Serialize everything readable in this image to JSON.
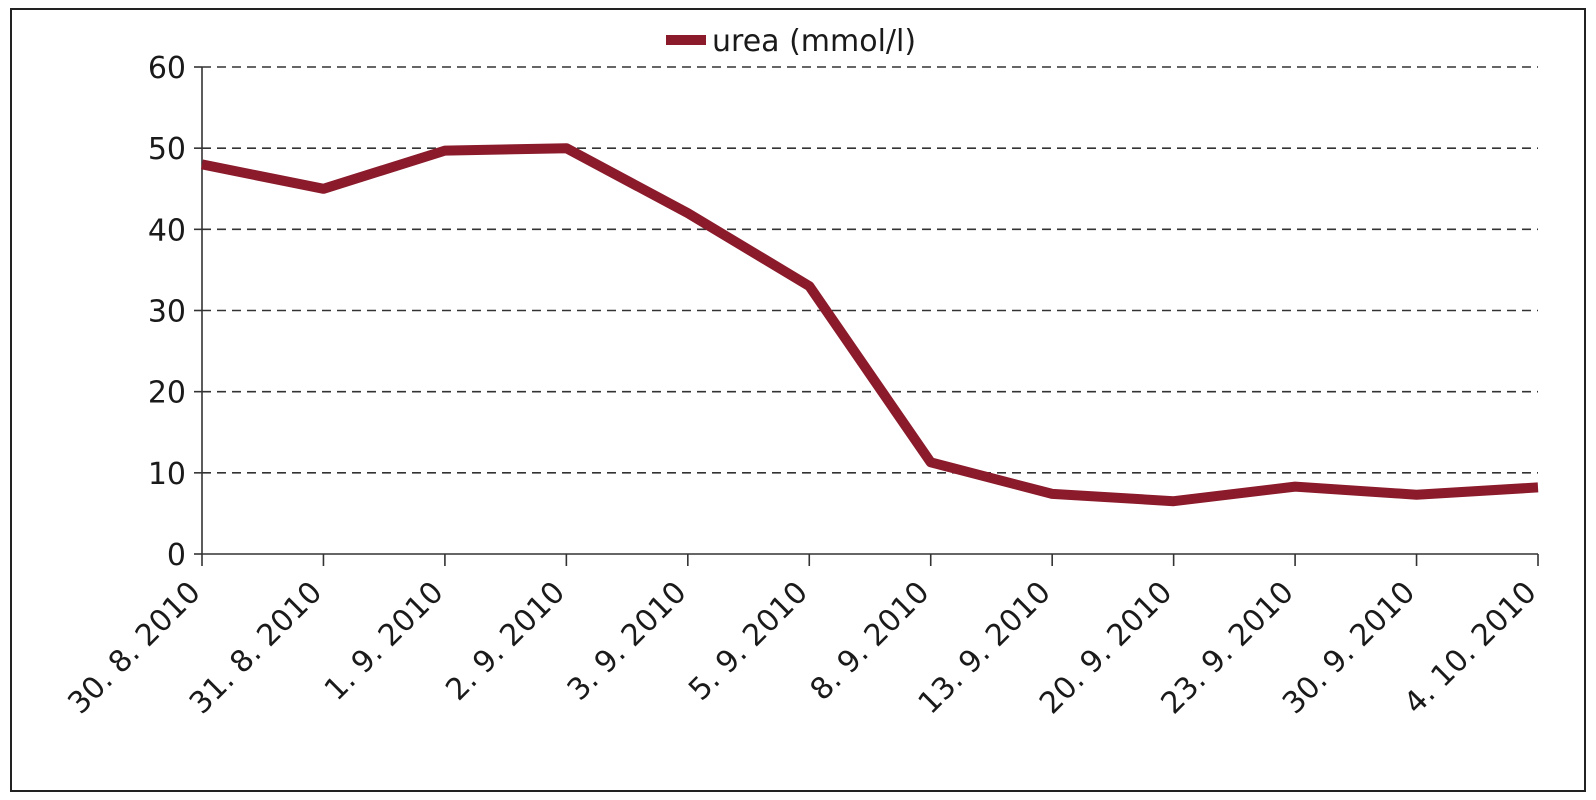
{
  "chart_data": {
    "type": "line",
    "title": "",
    "xlabel": "",
    "ylabel": "",
    "categories": [
      "30. 8. 2010",
      "31. 8. 2010",
      "1. 9. 2010",
      "2. 9. 2010",
      "3. 9. 2010",
      "5. 9. 2010",
      "8. 9. 2010",
      "13. 9. 2010",
      "20. 9. 2010",
      "23. 9. 2010",
      "30. 9. 2010",
      "4. 10. 2010"
    ],
    "series": [
      {
        "name": "urea (mmol/l)",
        "color": "#8b1a2b",
        "values": [
          48,
          45,
          49.7,
          50,
          42,
          33,
          11.3,
          7.4,
          6.5,
          8.3,
          7.3,
          8.2
        ]
      }
    ],
    "ylim": [
      0,
      60
    ],
    "yticks": [
      0,
      10,
      20,
      30,
      40,
      50,
      60
    ],
    "grid": true,
    "grid_style": "dashed",
    "legend_position": "top-center"
  }
}
